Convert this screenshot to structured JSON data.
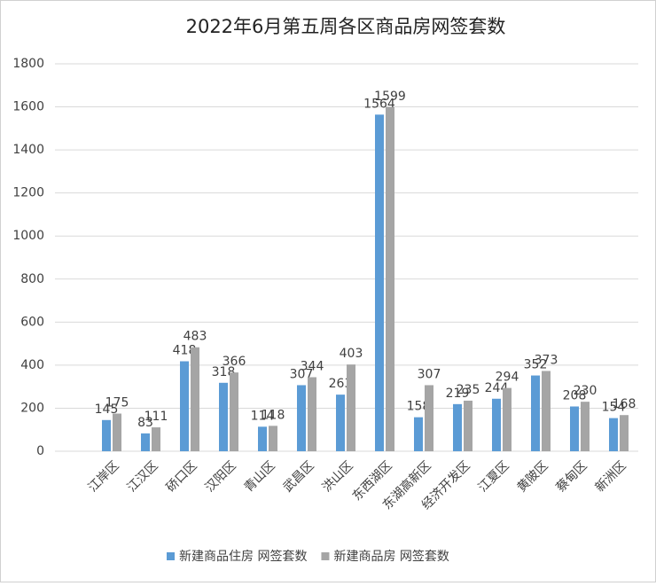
{
  "chart_data": {
    "type": "bar",
    "title": "2022年6月第五周各区商品房网签套数",
    "categories": [
      "江岸区",
      "江汉区",
      "硚口区",
      "汉阳区",
      "青山区",
      "武昌区",
      "洪山区",
      "东西湖区",
      "东湖高新区",
      "经济开发区",
      "江夏区",
      "黄陂区",
      "蔡甸区",
      "新洲区"
    ],
    "series": [
      {
        "name": "新建商品住房 网签套数",
        "color": "#5b9bd5",
        "values": [
          145,
          83,
          418,
          318,
          114,
          307,
          263,
          1564,
          158,
          219,
          244,
          352,
          208,
          154
        ]
      },
      {
        "name": "新建商品房 网签套数",
        "color": "#a5a5a5",
        "values": [
          175,
          111,
          483,
          366,
          118,
          344,
          403,
          1599,
          307,
          235,
          294,
          373,
          230,
          168
        ]
      }
    ],
    "ylim": [
      0,
      1800
    ],
    "yticks": [
      0,
      200,
      400,
      600,
      800,
      1000,
      1200,
      1400,
      1600,
      1800
    ],
    "grid": true,
    "legend": "bottom"
  }
}
